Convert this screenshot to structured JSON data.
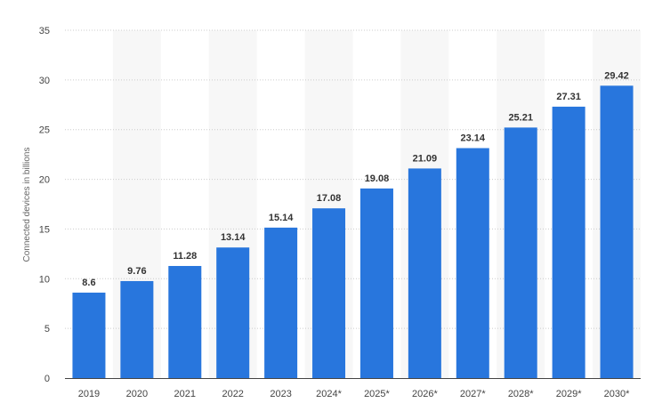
{
  "chart_data": {
    "type": "bar",
    "title": "",
    "xlabel": "",
    "ylabel": "Connected devices in billions",
    "categories": [
      "2019",
      "2020",
      "2021",
      "2022",
      "2023",
      "2024*",
      "2025*",
      "2026*",
      "2027*",
      "2028*",
      "2029*",
      "2030*"
    ],
    "values": [
      8.6,
      9.76,
      11.28,
      13.14,
      15.14,
      17.08,
      19.08,
      21.09,
      23.14,
      25.21,
      27.31,
      29.42
    ],
    "value_labels": [
      "8.6",
      "9.76",
      "11.28",
      "13.14",
      "15.14",
      "17.08",
      "19.08",
      "21.09",
      "23.14",
      "25.21",
      "27.31",
      "29.42"
    ],
    "ylim": [
      0,
      35
    ],
    "yticks": [
      0,
      5,
      10,
      15,
      20,
      25,
      30,
      35
    ],
    "ytick_labels": [
      "0",
      "5",
      "10",
      "15",
      "20",
      "25",
      "30",
      "35"
    ],
    "grid": true,
    "grid_style": "dotted horizontal",
    "alternating_column_bands": true,
    "legend": "none",
    "colors": {
      "bar": "#2876dd",
      "grid": "#cccccc",
      "band": "#f7f7f7",
      "axis": "#444444"
    }
  }
}
